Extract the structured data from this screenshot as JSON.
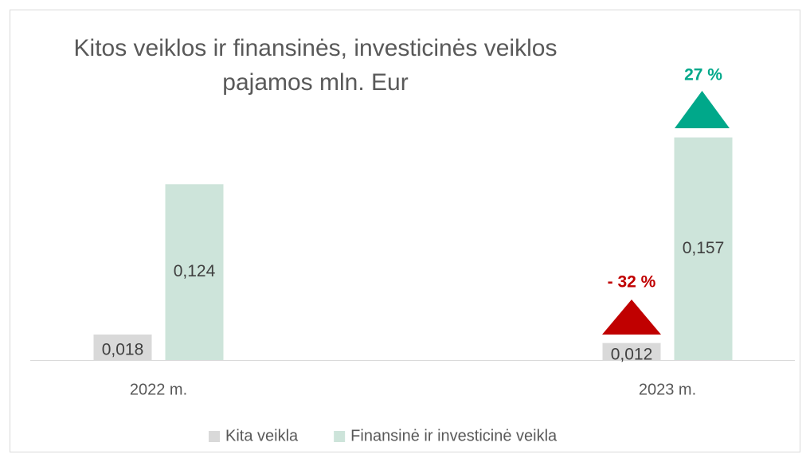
{
  "chart_data": {
    "type": "bar",
    "title": [
      "Kitos veiklos ir finansinės, investicinės veiklos",
      "pajamos mln. Eur"
    ],
    "categories": [
      "2022 m.",
      "2023 m."
    ],
    "series": [
      {
        "name": "Kita veikla",
        "color": "#d9d9d9",
        "values": [
          0.018,
          0.012
        ],
        "value_labels": [
          "0,018",
          "0,012"
        ]
      },
      {
        "name": "Finansinė ir investicinė veikla",
        "color": "#cde4da",
        "values": [
          0.124,
          0.157
        ],
        "value_labels": [
          "0,124",
          "0,157"
        ]
      }
    ],
    "ylim": [
      0,
      0.2
    ],
    "annotations": [
      {
        "text": "- 32 %",
        "color": "#c00000"
      },
      {
        "text": "27 %",
        "color": "#00a88a"
      }
    ],
    "legend": "bottom"
  }
}
